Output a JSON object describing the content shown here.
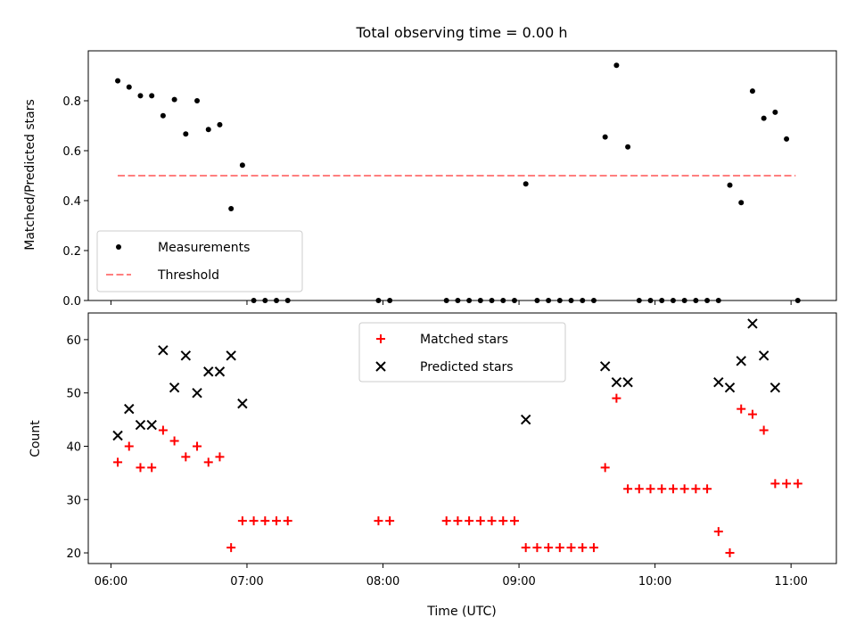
{
  "chart_data": [
    {
      "type": "scatter",
      "title": "Total observing time = 0.00 h",
      "xlabel": "",
      "ylabel": "Matched/Predicted stars",
      "xlim": [
        "05:50",
        "11:20"
      ],
      "ylim": [
        0,
        1.0
      ],
      "yticks": [
        0.0,
        0.2,
        0.4,
        0.6,
        0.8
      ],
      "ytick_labels": [
        "0.0",
        "0.2",
        "0.4",
        "0.6",
        "0.8"
      ],
      "xticks": [
        "06:00",
        "07:00",
        "08:00",
        "09:00",
        "10:00",
        "11:00"
      ],
      "show_xtick_labels": false,
      "legend": {
        "position": "lower-left",
        "entries": [
          "Measurements",
          "Threshold"
        ]
      },
      "threshold": {
        "name": "Threshold",
        "value": 0.5,
        "x_range": [
          "06:03",
          "11:02"
        ],
        "color": "#ff7f7f",
        "style": "dashed"
      },
      "series": [
        {
          "name": "Measurements",
          "marker": "dot",
          "color": "#000000",
          "x": [
            "06:03",
            "06:08",
            "06:13",
            "06:18",
            "06:23",
            "06:28",
            "06:33",
            "06:38",
            "06:43",
            "06:48",
            "06:53",
            "06:58",
            "07:03",
            "07:08",
            "07:13",
            "07:18",
            "07:58",
            "08:03",
            "08:28",
            "08:33",
            "08:38",
            "08:43",
            "08:48",
            "08:53",
            "08:58",
            "09:03",
            "09:08",
            "09:13",
            "09:18",
            "09:23",
            "09:28",
            "09:33",
            "09:38",
            "09:43",
            "09:48",
            "09:53",
            "09:58",
            "10:03",
            "10:08",
            "10:13",
            "10:18",
            "10:23",
            "10:28",
            "10:33",
            "10:38",
            "10:43",
            "10:48",
            "10:53",
            "10:58",
            "11:03"
          ],
          "y": [
            0.88,
            0.855,
            0.82,
            0.82,
            0.74,
            0.805,
            0.667,
            0.8,
            0.685,
            0.704,
            0.368,
            0.542,
            0,
            0,
            0,
            0,
            0,
            0,
            0,
            0,
            0,
            0,
            0,
            0,
            0,
            0.467,
            0,
            0,
            0,
            0,
            0,
            0,
            0.655,
            0.942,
            0.615,
            0,
            0,
            0,
            0,
            0,
            0,
            0,
            0,
            0.462,
            0.392,
            0.839,
            0.73,
            0.754,
            0.647,
            0
          ]
        }
      ]
    },
    {
      "type": "scatter",
      "title": "",
      "xlabel": "Time (UTC)",
      "ylabel": "Count",
      "xlim": [
        "05:50",
        "11:20"
      ],
      "ylim": [
        18,
        65
      ],
      "yticks": [
        20,
        30,
        40,
        50,
        60
      ],
      "ytick_labels": [
        "20",
        "30",
        "40",
        "50",
        "60"
      ],
      "xticks": [
        "06:00",
        "07:00",
        "08:00",
        "09:00",
        "10:00",
        "11:00"
      ],
      "xtick_labels": [
        "06:00",
        "07:00",
        "08:00",
        "09:00",
        "10:00",
        "11:00"
      ],
      "show_xtick_labels": true,
      "legend": {
        "position": "upper-center",
        "entries": [
          "Matched stars",
          "Predicted stars"
        ]
      },
      "series": [
        {
          "name": "Matched stars",
          "marker": "plus",
          "color": "#ff0000",
          "x": [
            "06:03",
            "06:08",
            "06:13",
            "06:18",
            "06:23",
            "06:28",
            "06:33",
            "06:38",
            "06:43",
            "06:48",
            "06:53",
            "06:58",
            "07:03",
            "07:08",
            "07:13",
            "07:18",
            "07:58",
            "08:03",
            "08:28",
            "08:33",
            "08:38",
            "08:43",
            "08:48",
            "08:53",
            "08:58",
            "09:03",
            "09:08",
            "09:13",
            "09:18",
            "09:23",
            "09:28",
            "09:33",
            "09:38",
            "09:43",
            "09:48",
            "09:53",
            "09:58",
            "10:03",
            "10:08",
            "10:13",
            "10:18",
            "10:23",
            "10:28",
            "10:33",
            "10:38",
            "10:43",
            "10:48",
            "10:53",
            "10:58",
            "11:03"
          ],
          "y": [
            37,
            40,
            36,
            36,
            43,
            41,
            38,
            40,
            37,
            38,
            21,
            26,
            26,
            26,
            26,
            26,
            26,
            26,
            26,
            26,
            26,
            26,
            26,
            26,
            26,
            21,
            21,
            21,
            21,
            21,
            21,
            21,
            36,
            49,
            32,
            32,
            32,
            32,
            32,
            32,
            32,
            32,
            24,
            20,
            47,
            46,
            43,
            33,
            33,
            33
          ]
        },
        {
          "name": "Predicted stars",
          "marker": "x",
          "color": "#000000",
          "x": [
            "06:03",
            "06:08",
            "06:13",
            "06:18",
            "06:23",
            "06:28",
            "06:33",
            "06:38",
            "06:43",
            "06:48",
            "06:53",
            "06:58",
            "09:03",
            "09:38",
            "09:43",
            "09:48",
            "10:28",
            "10:33",
            "10:38",
            "10:43",
            "10:48",
            "10:53"
          ],
          "y": [
            42,
            47,
            44,
            44,
            58,
            51,
            57,
            50,
            54,
            54,
            57,
            48,
            45,
            55,
            52,
            52,
            52,
            51,
            56,
            63,
            57,
            51
          ]
        }
      ]
    }
  ]
}
